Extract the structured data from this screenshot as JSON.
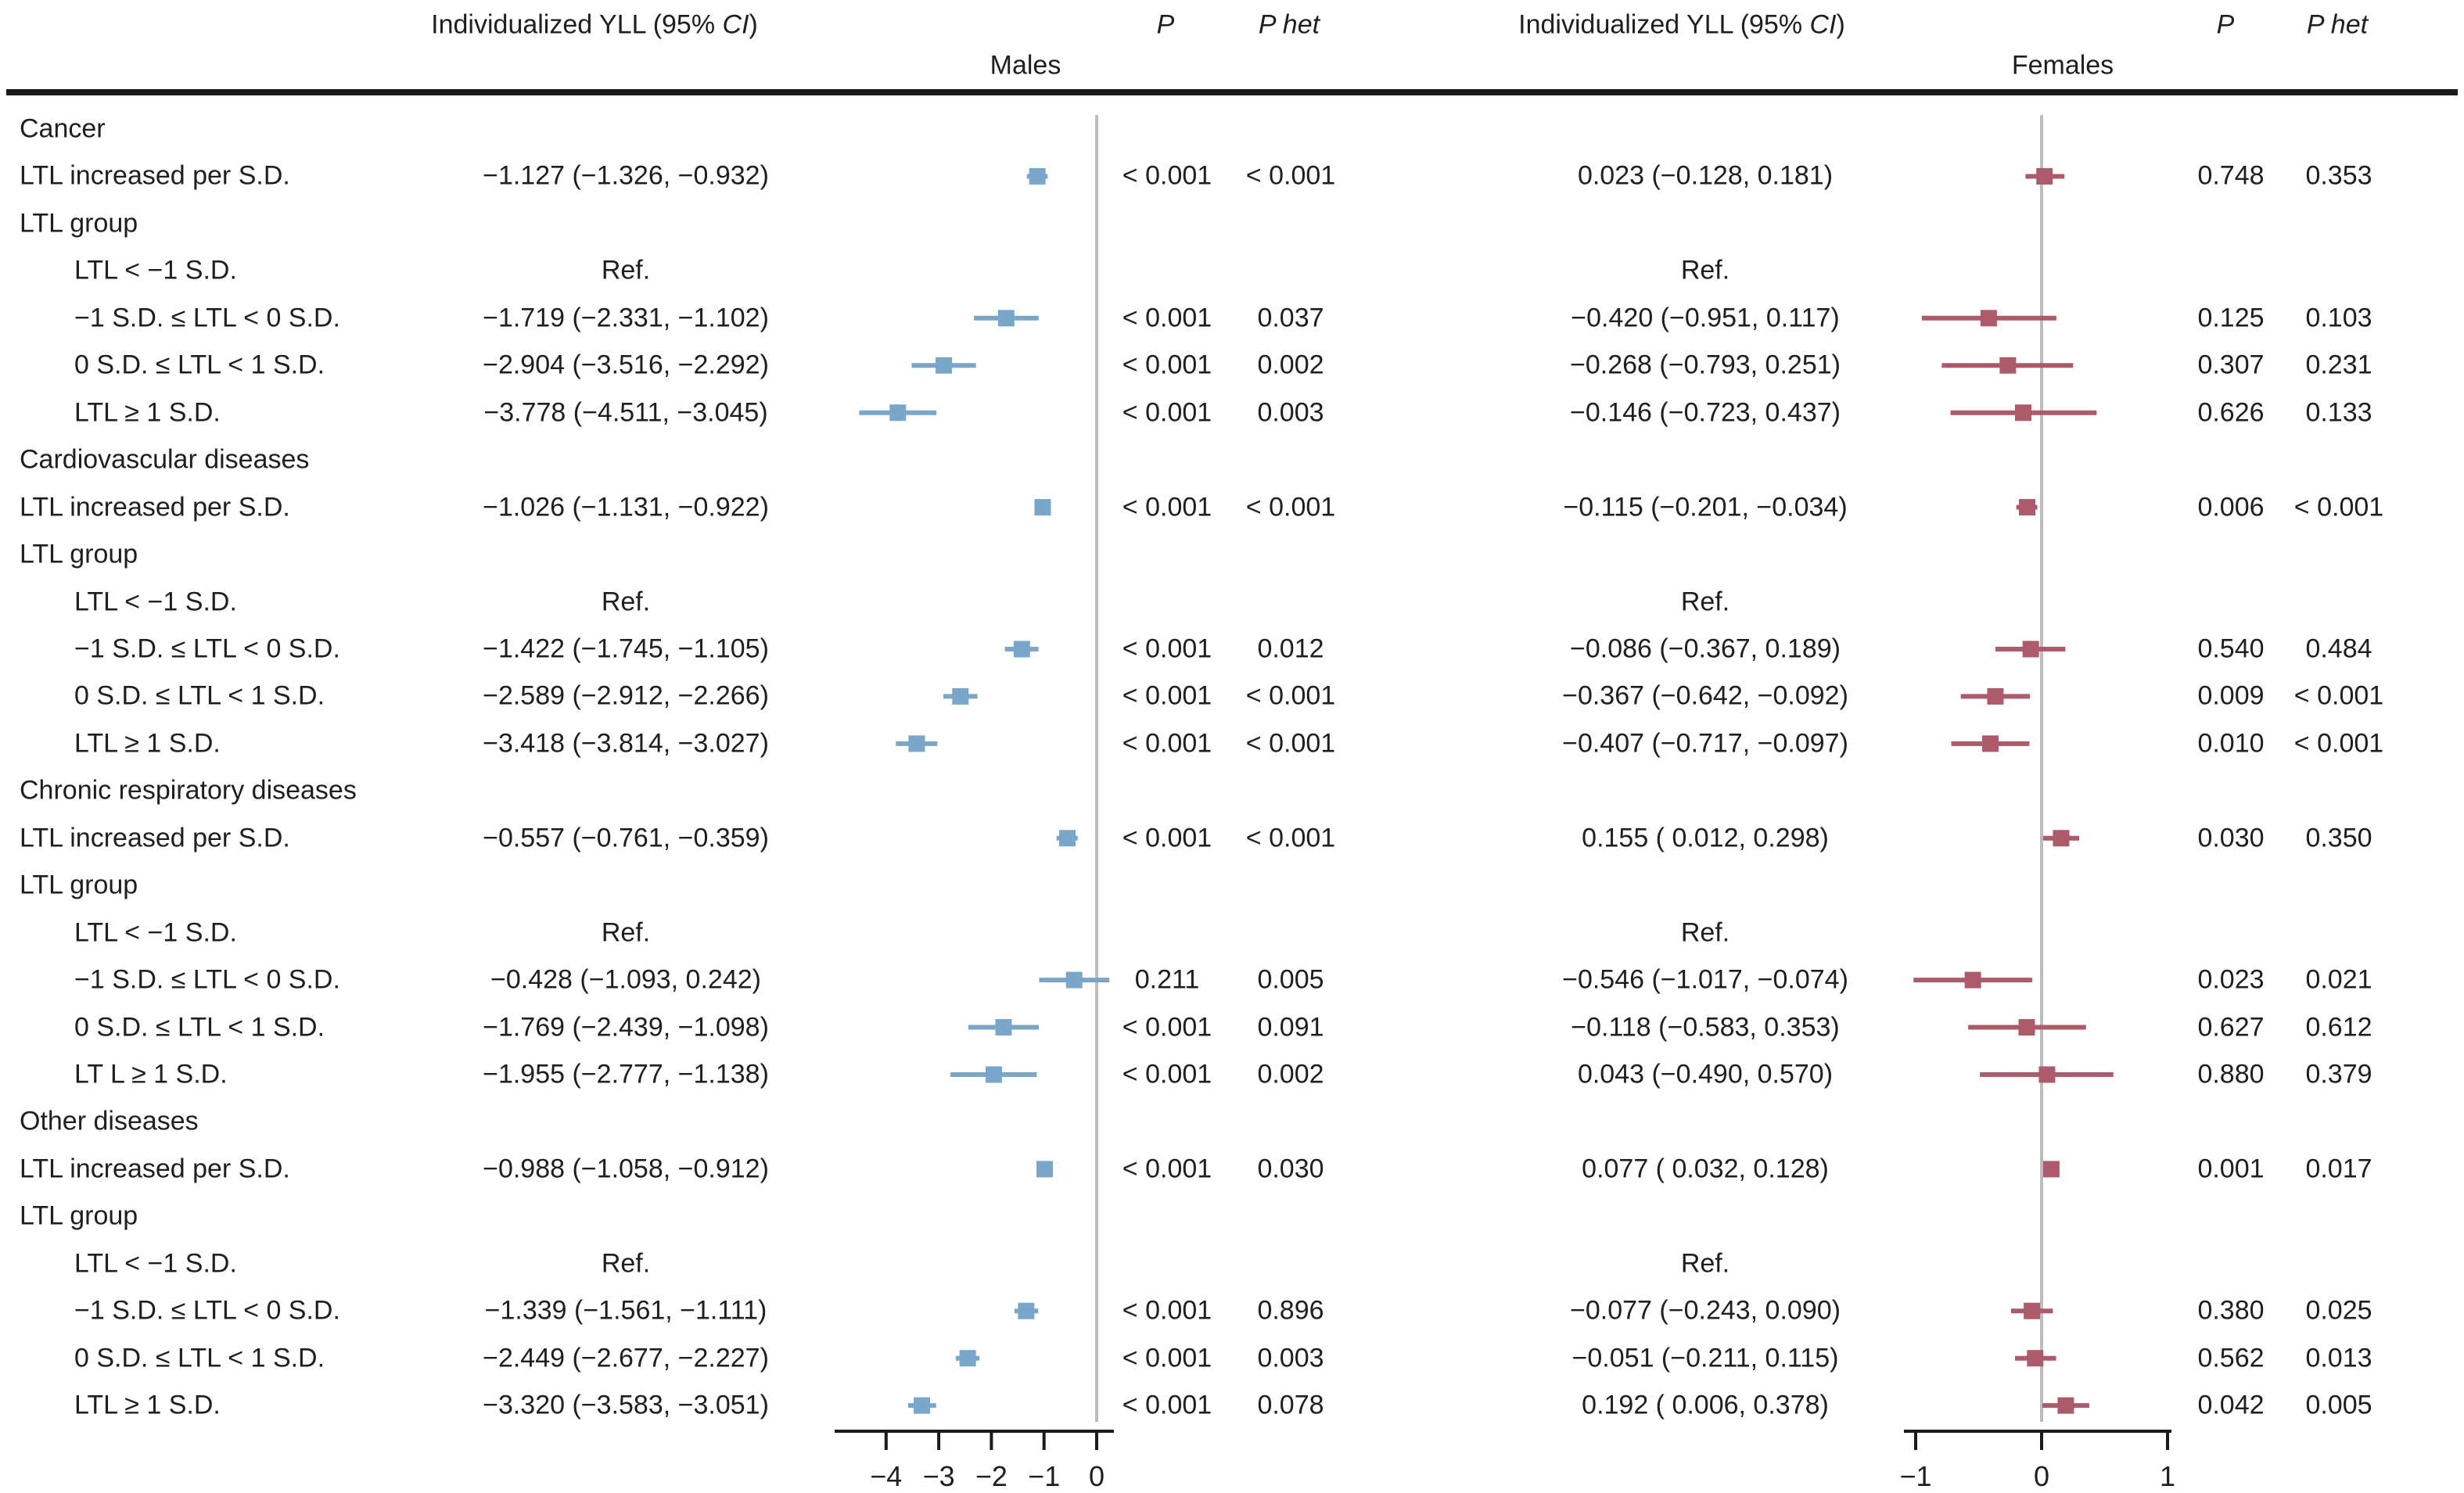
{
  "header": {
    "yll_prefix": "Individualized YLL (95% ",
    "yll_ci": "CI",
    "yll_suffix": ")",
    "p": "P",
    "p_het": "P het",
    "males": "Males",
    "females": "Females"
  },
  "colors": {
    "male_marker": "#7aa6ca",
    "female_marker": "#ad5a6a",
    "zero_line": "#bdbdbd",
    "axis": "#1a1a1a",
    "text": "#1f1f1f"
  },
  "chart_data": {
    "type": "forest",
    "ref_text": "Ref.",
    "panels": [
      {
        "name": "Males",
        "xlim": [
          -5,
          0.35
        ],
        "ticks": [
          {
            "label": "−4",
            "value": -4
          },
          {
            "label": "−3",
            "value": -3
          },
          {
            "label": "−2",
            "value": -2
          },
          {
            "label": "−1",
            "value": -1
          },
          {
            "label": "0",
            "value": 0
          }
        ]
      },
      {
        "name": "Females",
        "xlim": [
          -1.1,
          1.05
        ],
        "ticks": [
          {
            "label": "−1",
            "value": -1
          },
          {
            "label": "0",
            "value": 0
          },
          {
            "label": "1",
            "value": 1
          }
        ]
      }
    ],
    "rows": [
      {
        "label": "Cancer",
        "indent": 0,
        "kind": "section"
      },
      {
        "label": "LTL increased per S.D.",
        "indent": 0,
        "kind": "data",
        "male": {
          "text": "−1.127 (−1.326, −0.932)",
          "est": -1.127,
          "lo": -1.326,
          "hi": -0.932,
          "p": "< 0.001",
          "phet": "< 0.001"
        },
        "female": {
          "text": "0.023 (−0.128, 0.181)",
          "est": 0.023,
          "lo": -0.128,
          "hi": 0.181,
          "p": "0.748",
          "phet": "0.353"
        }
      },
      {
        "label": "LTL group",
        "indent": 0,
        "kind": "section"
      },
      {
        "label": "LTL < −1 S.D.",
        "indent": 1,
        "kind": "ref"
      },
      {
        "label": "−1 S.D. ≤ LTL < 0 S.D.",
        "indent": 1,
        "kind": "data",
        "male": {
          "text": "−1.719 (−2.331, −1.102)",
          "est": -1.719,
          "lo": -2.331,
          "hi": -1.102,
          "p": "< 0.001",
          "phet": "0.037"
        },
        "female": {
          "text": "−0.420 (−0.951, 0.117)",
          "est": -0.42,
          "lo": -0.951,
          "hi": 0.117,
          "p": "0.125",
          "phet": "0.103"
        }
      },
      {
        "label": "0 S.D. ≤ LTL < 1 S.D.",
        "indent": 1,
        "kind": "data",
        "male": {
          "text": "−2.904 (−3.516, −2.292)",
          "est": -2.904,
          "lo": -3.516,
          "hi": -2.292,
          "p": "< 0.001",
          "phet": "0.002"
        },
        "female": {
          "text": "−0.268 (−0.793, 0.251)",
          "est": -0.268,
          "lo": -0.793,
          "hi": 0.251,
          "p": "0.307",
          "phet": "0.231"
        }
      },
      {
        "label": "LTL ≥ 1 S.D.",
        "indent": 1,
        "kind": "data",
        "male": {
          "text": "−3.778 (−4.511, −3.045)",
          "est": -3.778,
          "lo": -4.511,
          "hi": -3.045,
          "p": "< 0.001",
          "phet": "0.003"
        },
        "female": {
          "text": "−0.146 (−0.723, 0.437)",
          "est": -0.146,
          "lo": -0.723,
          "hi": 0.437,
          "p": "0.626",
          "phet": "0.133"
        }
      },
      {
        "label": "Cardiovascular diseases",
        "indent": 0,
        "kind": "section"
      },
      {
        "label": "LTL increased per S.D.",
        "indent": 0,
        "kind": "data",
        "male": {
          "text": "−1.026 (−1.131, −0.922)",
          "est": -1.026,
          "lo": -1.131,
          "hi": -0.922,
          "p": "< 0.001",
          "phet": "< 0.001"
        },
        "female": {
          "text": "−0.115 (−0.201, −0.034)",
          "est": -0.115,
          "lo": -0.201,
          "hi": -0.034,
          "p": "0.006",
          "phet": "< 0.001"
        }
      },
      {
        "label": "LTL group",
        "indent": 0,
        "kind": "section"
      },
      {
        "label": "LTL < −1 S.D.",
        "indent": 1,
        "kind": "ref"
      },
      {
        "label": "−1 S.D. ≤ LTL < 0 S.D.",
        "indent": 1,
        "kind": "data",
        "male": {
          "text": "−1.422 (−1.745, −1.105)",
          "est": -1.422,
          "lo": -1.745,
          "hi": -1.105,
          "p": "< 0.001",
          "phet": "0.012"
        },
        "female": {
          "text": "−0.086 (−0.367, 0.189)",
          "est": -0.086,
          "lo": -0.367,
          "hi": 0.189,
          "p": "0.540",
          "phet": "0.484"
        }
      },
      {
        "label": "0 S.D. ≤ LTL < 1 S.D.",
        "indent": 1,
        "kind": "data",
        "male": {
          "text": "−2.589 (−2.912, −2.266)",
          "est": -2.589,
          "lo": -2.912,
          "hi": -2.266,
          "p": "< 0.001",
          "phet": "< 0.001"
        },
        "female": {
          "text": "−0.367 (−0.642, −0.092)",
          "est": -0.367,
          "lo": -0.642,
          "hi": -0.092,
          "p": "0.009",
          "phet": "< 0.001"
        }
      },
      {
        "label": "LTL ≥ 1 S.D.",
        "indent": 1,
        "kind": "data",
        "male": {
          "text": "−3.418 (−3.814, −3.027)",
          "est": -3.418,
          "lo": -3.814,
          "hi": -3.027,
          "p": "< 0.001",
          "phet": "< 0.001"
        },
        "female": {
          "text": "−0.407 (−0.717, −0.097)",
          "est": -0.407,
          "lo": -0.717,
          "hi": -0.097,
          "p": "0.010",
          "phet": "< 0.001"
        }
      },
      {
        "label": "Chronic respiratory diseases",
        "indent": 0,
        "kind": "section"
      },
      {
        "label": "LTL increased per S.D.",
        "indent": 0,
        "kind": "data",
        "male": {
          "text": "−0.557 (−0.761, −0.359)",
          "est": -0.557,
          "lo": -0.761,
          "hi": -0.359,
          "p": "< 0.001",
          "phet": "< 0.001"
        },
        "female": {
          "text": "0.155 ( 0.012, 0.298)",
          "est": 0.155,
          "lo": 0.012,
          "hi": 0.298,
          "p": "0.030",
          "phet": "0.350"
        }
      },
      {
        "label": "LTL group",
        "indent": 0,
        "kind": "section"
      },
      {
        "label": "LTL < −1 S.D.",
        "indent": 1,
        "kind": "ref"
      },
      {
        "label": "−1 S.D. ≤ LTL < 0 S.D.",
        "indent": 1,
        "kind": "data",
        "male": {
          "text": "−0.428 (−1.093, 0.242)",
          "est": -0.428,
          "lo": -1.093,
          "hi": 0.242,
          "p": "0.211",
          "phet": "0.005"
        },
        "female": {
          "text": "−0.546 (−1.017, −0.074)",
          "est": -0.546,
          "lo": -1.017,
          "hi": -0.074,
          "p": "0.023",
          "phet": "0.021"
        }
      },
      {
        "label": "0 S.D. ≤ LTL < 1 S.D.",
        "indent": 1,
        "kind": "data",
        "male": {
          "text": "−1.769 (−2.439, −1.098)",
          "est": -1.769,
          "lo": -2.439,
          "hi": -1.098,
          "p": "< 0.001",
          "phet": "0.091"
        },
        "female": {
          "text": "−0.118 (−0.583, 0.353)",
          "est": -0.118,
          "lo": -0.583,
          "hi": 0.353,
          "p": "0.627",
          "phet": "0.612"
        }
      },
      {
        "label": "LT L ≥ 1 S.D.",
        "indent": 1,
        "kind": "data",
        "male": {
          "text": "−1.955 (−2.777, −1.138)",
          "est": -1.955,
          "lo": -2.777,
          "hi": -1.138,
          "p": "< 0.001",
          "phet": "0.002"
        },
        "female": {
          "text": "0.043 (−0.490, 0.570)",
          "est": 0.043,
          "lo": -0.49,
          "hi": 0.57,
          "p": "0.880",
          "phet": "0.379"
        }
      },
      {
        "label": "Other diseases",
        "indent": 0,
        "kind": "section"
      },
      {
        "label": "LTL increased per S.D.",
        "indent": 0,
        "kind": "data",
        "male": {
          "text": "−0.988 (−1.058, −0.912)",
          "est": -0.988,
          "lo": -1.058,
          "hi": -0.912,
          "p": "< 0.001",
          "phet": "0.030"
        },
        "female": {
          "text": "0.077 ( 0.032, 0.128)",
          "est": 0.077,
          "lo": 0.032,
          "hi": 0.128,
          "p": "0.001",
          "phet": "0.017"
        }
      },
      {
        "label": "LTL group",
        "indent": 0,
        "kind": "section"
      },
      {
        "label": "LTL < −1 S.D.",
        "indent": 1,
        "kind": "ref"
      },
      {
        "label": "−1 S.D. ≤ LTL < 0 S.D.",
        "indent": 1,
        "kind": "data",
        "male": {
          "text": "−1.339 (−1.561, −1.111)",
          "est": -1.339,
          "lo": -1.561,
          "hi": -1.111,
          "p": "< 0.001",
          "phet": "0.896"
        },
        "female": {
          "text": "−0.077 (−0.243, 0.090)",
          "est": -0.077,
          "lo": -0.243,
          "hi": 0.09,
          "p": "0.380",
          "phet": "0.025"
        }
      },
      {
        "label": "0 S.D. ≤ LTL < 1 S.D.",
        "indent": 1,
        "kind": "data",
        "male": {
          "text": "−2.449 (−2.677, −2.227)",
          "est": -2.449,
          "lo": -2.677,
          "hi": -2.227,
          "p": "< 0.001",
          "phet": "0.003"
        },
        "female": {
          "text": "−0.051 (−0.211, 0.115)",
          "est": -0.051,
          "lo": -0.211,
          "hi": 0.115,
          "p": "0.562",
          "phet": "0.013"
        }
      },
      {
        "label": "LTL ≥ 1 S.D.",
        "indent": 1,
        "kind": "data",
        "male": {
          "text": "−3.320 (−3.583, −3.051)",
          "est": -3.32,
          "lo": -3.583,
          "hi": -3.051,
          "p": "< 0.001",
          "phet": "0.078"
        },
        "female": {
          "text": "0.192 ( 0.006, 0.378)",
          "est": 0.192,
          "lo": 0.006,
          "hi": 0.378,
          "p": "0.042",
          "phet": "0.005"
        }
      }
    ]
  }
}
